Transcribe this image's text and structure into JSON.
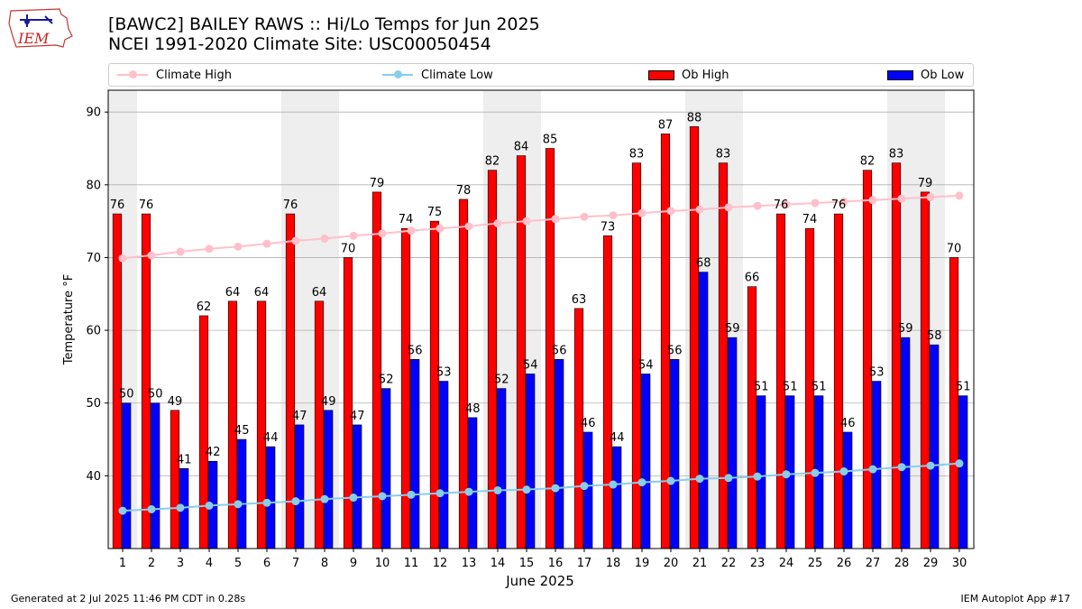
{
  "header": {
    "title_line1": "[BAWC2] BAILEY RAWS :: Hi/Lo Temps for Jun 2025",
    "title_line2": "NCEI 1991-2020 Climate Site: USC00050454",
    "logo_text": "IEM"
  },
  "legend": {
    "climate_high": "Climate High",
    "climate_low": "Climate Low",
    "ob_high": "Ob High",
    "ob_low": "Ob Low"
  },
  "colors": {
    "climate_high": "#ffc0cb",
    "climate_low": "#87ceeb",
    "ob_high": "#ff0000",
    "ob_low": "#0000ff",
    "weekend_shade": "#eeeeee",
    "grid": "#b0b0b0"
  },
  "footer": {
    "left": "Generated at 2 Jul 2025 11:46 PM CDT in 0.28s",
    "right": "IEM Autoplot App #17"
  },
  "chart_data": {
    "type": "bar",
    "xlabel": "June 2025",
    "ylabel": "Temperature °F",
    "ylim": [
      30,
      93
    ],
    "yticks": [
      40,
      50,
      60,
      70,
      80,
      90
    ],
    "grid": "horizontal",
    "legend_position": "top",
    "categories": [
      "1",
      "2",
      "3",
      "4",
      "5",
      "6",
      "7",
      "8",
      "9",
      "10",
      "11",
      "12",
      "13",
      "14",
      "15",
      "16",
      "17",
      "18",
      "19",
      "20",
      "21",
      "22",
      "23",
      "24",
      "25",
      "26",
      "27",
      "28",
      "29",
      "30"
    ],
    "shaded_days": [
      1,
      7,
      8,
      14,
      15,
      21,
      22,
      28,
      29
    ],
    "series": [
      {
        "name": "Ob High",
        "kind": "bar",
        "values": [
          76,
          76,
          49,
          62,
          64,
          64,
          76,
          64,
          70,
          79,
          74,
          75,
          78,
          82,
          84,
          85,
          63,
          73,
          83,
          87,
          88,
          83,
          66,
          76,
          74,
          76,
          82,
          83,
          79,
          70
        ]
      },
      {
        "name": "Ob Low",
        "kind": "bar",
        "values": [
          50,
          50,
          41,
          42,
          45,
          44,
          47,
          49,
          47,
          52,
          56,
          53,
          48,
          52,
          54,
          56,
          46,
          44,
          54,
          56,
          68,
          59,
          51,
          51,
          51,
          46,
          53,
          59,
          58,
          51
        ]
      },
      {
        "name": "Climate High",
        "kind": "line",
        "values": [
          69.9,
          70.3,
          70.8,
          71.2,
          71.5,
          71.9,
          72.3,
          72.6,
          73.0,
          73.3,
          73.7,
          74.0,
          74.3,
          74.7,
          75.0,
          75.3,
          75.6,
          75.8,
          76.1,
          76.4,
          76.6,
          76.9,
          77.1,
          77.3,
          77.5,
          77.7,
          77.9,
          78.1,
          78.3,
          78.5
        ]
      },
      {
        "name": "Climate Low",
        "kind": "line",
        "values": [
          35.2,
          35.4,
          35.6,
          35.9,
          36.1,
          36.3,
          36.5,
          36.8,
          37.0,
          37.2,
          37.4,
          37.6,
          37.8,
          38.0,
          38.1,
          38.3,
          38.6,
          38.8,
          39.1,
          39.3,
          39.6,
          39.7,
          39.9,
          40.2,
          40.4,
          40.6,
          40.9,
          41.2,
          41.4,
          41.7
        ]
      }
    ]
  }
}
